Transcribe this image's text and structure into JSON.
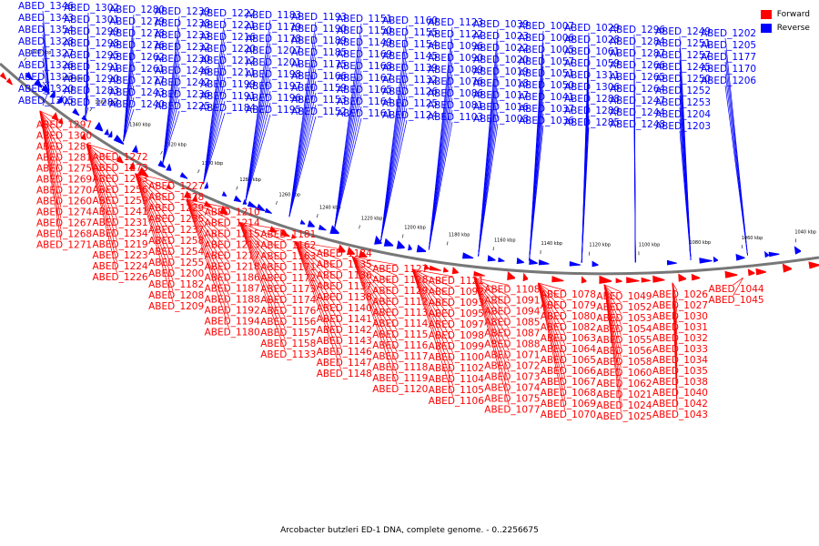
{
  "caption": "Arcobacter butzleri ED-1 DNA, complete genome. - 0..2256675",
  "legend": [
    {
      "label": "Forward",
      "color": "#ff0000"
    },
    {
      "label": "Reverse",
      "color": "#0000ff"
    }
  ],
  "scale_ticks": [
    "1400 kbp",
    "1380 kbp",
    "1360 kbp",
    "1340 kbp",
    "1320 kbp",
    "1300 kbp",
    "1280 kbp",
    "1260 kbp",
    "1240 kbp",
    "1220 kbp",
    "1200 kbp",
    "1180 kbp",
    "1160 kbp",
    "1140 kbp",
    "1120 kbp",
    "1100 kbp",
    "1080 kbp",
    "1060 kbp",
    "1040 kbp"
  ],
  "reverse_labels": [
    "ABED_1346",
    "ABED_1343",
    "ABED_1354",
    "ABED_1328",
    "ABED_1327",
    "ABED_1326",
    "ABED_1323",
    "ABED_1320",
    "ABED_1305",
    "ABED_1302",
    "ABED_1301",
    "ABED_1299",
    "ABED_1298",
    "ABED_1295",
    "ABED_1291",
    "ABED_1290",
    "ABED_1283",
    "ABED_1282",
    "ABED_1280",
    "ABED_1279",
    "ABED_1278",
    "ABED_1276",
    "ABED_1262",
    "ABED_1261",
    "ABED_1277",
    "ABED_1243",
    "ABED_1240",
    "ABED_1239",
    "ABED_1238",
    "ABED_1233",
    "ABED_1232",
    "ABED_1230",
    "ABED_1246",
    "ABED_1242",
    "ABED_1236",
    "ABED_1225",
    "ABED_1222",
    "ABED_1221",
    "ABED_1216",
    "ABED_1220",
    "ABED_1212",
    "ABED_1211",
    "ABED_1199",
    "ABED_1191",
    "ABED_1184",
    "ABED_1183",
    "ABED_1179",
    "ABED_1178",
    "ABED_1207",
    "ABED_1201",
    "ABED_1198",
    "ABED_1197",
    "ABED_1196",
    "ABED_1195",
    "ABED_1193",
    "ABED_1190",
    "ABED_1189",
    "ABED_1185",
    "ABED_1175",
    "ABED_1166",
    "ABED_1159",
    "ABED_1153",
    "ABED_1152",
    "ABED_1151",
    "ABED_1150",
    "ABED_1149",
    "ABED_1169",
    "ABED_1168",
    "ABED_1167",
    "ABED_1165",
    "ABED_1164",
    "ABED_1161",
    "ABED_1160",
    "ABED_1155",
    "ABED_1154",
    "ABED_1145",
    "ABED_1139",
    "ABED_1132",
    "ABED_1126",
    "ABED_1125",
    "ABED_1124",
    "ABED_1123",
    "ABED_1122",
    "ABED_1096",
    "ABED_1090",
    "ABED_1089",
    "ABED_1076",
    "ABED_1086",
    "ABED_1081",
    "ABED_1103",
    "ABED_1039",
    "ABED_1023",
    "ABED_1022",
    "ABED_1020",
    "ABED_1019",
    "ABED_1018",
    "ABED_1017",
    "ABED_1016",
    "ABED_1008",
    "ABED_1007",
    "ABED_1006",
    "ABED_1005",
    "ABED_1057",
    "ABED_1051",
    "ABED_1050",
    "ABED_1041",
    "ABED_1037",
    "ABED_1036",
    "ABED_1029",
    "ABED_1028",
    "ABED_1061",
    "ABED_1059",
    "ABED_1311",
    "ABED_1306",
    "ABED_1288",
    "ABED_1289",
    "ABED_1285",
    "ABED_1296",
    "ABED_1284",
    "ABED_1287",
    "ABED_1266",
    "ABED_1265",
    "ABED_1264",
    "ABED_1247",
    "ABED_1244",
    "ABED_1248",
    "ABED_1249",
    "ABED_1251",
    "ABED_1257",
    "ABED_1245",
    "ABED_1250",
    "ABED_1252",
    "ABED_1253",
    "ABED_1204",
    "ABED_1203",
    "ABED_1202",
    "ABED_1205",
    "ABED_1177",
    "ABED_1170",
    "ABED_1206"
  ],
  "forward_labels": [
    "ABED_1297",
    "ABED_1300",
    "ABED_1286",
    "ABED_1281",
    "ABED_1275",
    "ABED_1269",
    "ABED_1270",
    "ABED_1260",
    "ABED_1274",
    "ABED_1267",
    "ABED_1268",
    "ABED_1271",
    "ABED_1272",
    "ABED_1273",
    "ABED_1263",
    "ABED_1256",
    "ABED_1259",
    "ABED_1241",
    "ABED_1231",
    "ABED_1234",
    "ABED_1219",
    "ABED_1223",
    "ABED_1224",
    "ABED_1226",
    "ABED_1227",
    "ABED_1228",
    "ABED_1229",
    "ABED_1235",
    "ABED_1237",
    "ABED_1258",
    "ABED_1254",
    "ABED_1255",
    "ABED_1200",
    "ABED_1182",
    "ABED_1208",
    "ABED_1209",
    "ABED_1210",
    "ABED_1214",
    "ABED_1215",
    "ABED_1213",
    "ABED_1217",
    "ABED_1218",
    "ABED_1186",
    "ABED_1187",
    "ABED_1188",
    "ABED_1192",
    "ABED_1194",
    "ABED_1180",
    "ABED_1181",
    "ABED_1162",
    "ABED_1163",
    "ABED_1171",
    "ABED_1172",
    "ABED_1173",
    "ABED_1174",
    "ABED_1176",
    "ABED_1156",
    "ABED_1157",
    "ABED_1158",
    "ABED_1133",
    "ABED_1134",
    "ABED_1135",
    "ABED_1136",
    "ABED_1137",
    "ABED_1138",
    "ABED_1140",
    "ABED_1141",
    "ABED_1142",
    "ABED_1143",
    "ABED_1146",
    "ABED_1147",
    "ABED_1148",
    "ABED_1127",
    "ABED_1128",
    "ABED_1129",
    "ABED_1112",
    "ABED_1113",
    "ABED_1114",
    "ABED_1115",
    "ABED_1116",
    "ABED_1117",
    "ABED_1118",
    "ABED_1119",
    "ABED_1120",
    "ABED_1121",
    "ABED_1092",
    "ABED_1093",
    "ABED_1095",
    "ABED_1097",
    "ABED_1098",
    "ABED_1099",
    "ABED_1100",
    "ABED_1102",
    "ABED_1104",
    "ABED_1105",
    "ABED_1106",
    "ABED_1108",
    "ABED_1091",
    "ABED_1094",
    "ABED_1085",
    "ABED_1087",
    "ABED_1088",
    "ABED_1071",
    "ABED_1072",
    "ABED_1073",
    "ABED_1074",
    "ABED_1075",
    "ABED_1077",
    "ABED_1078",
    "ABED_1079",
    "ABED_1080",
    "ABED_1082",
    "ABED_1063",
    "ABED_1064",
    "ABED_1065",
    "ABED_1066",
    "ABED_1067",
    "ABED_1068",
    "ABED_1069",
    "ABED_1070",
    "ABED_1049",
    "ABED_1052",
    "ABED_1053",
    "ABED_1054",
    "ABED_1055",
    "ABED_1056",
    "ABED_1058",
    "ABED_1060",
    "ABED_1062",
    "ABED_1021",
    "ABED_1024",
    "ABED_1025",
    "ABED_1026",
    "ABED_1027",
    "ABED_1030",
    "ABED_1031",
    "ABED_1032",
    "ABED_1033",
    "ABED_1034",
    "ABED_1035",
    "ABED_1038",
    "ABED_1040",
    "ABED_1042",
    "ABED_1043",
    "ABED_1044",
    "ABED_1045"
  ]
}
